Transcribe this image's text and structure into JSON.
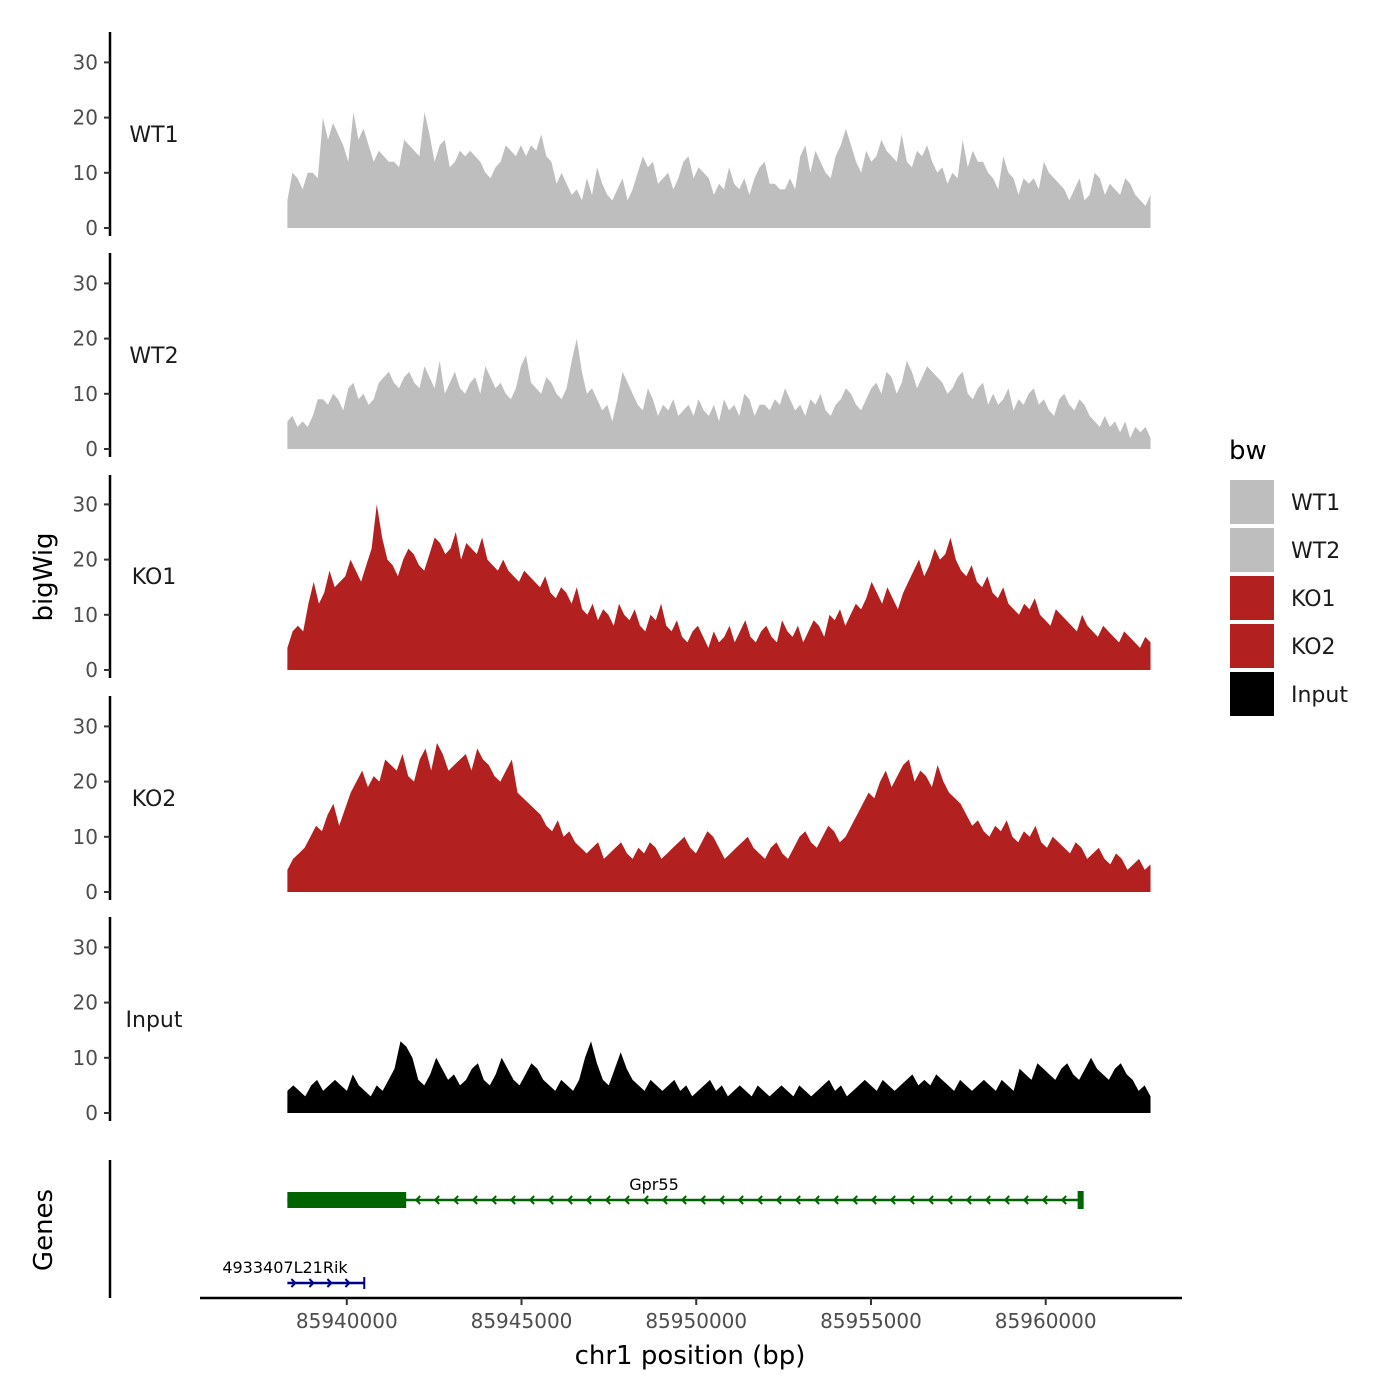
{
  "chart_data": {
    "type": "area",
    "ylabel": "bigWig",
    "xlabel": "chr1 position (bp)",
    "genes_label": "Genes",
    "x_range": [
      85938300,
      85963000
    ],
    "xlim": [
      85935800,
      85963900
    ],
    "x_ticks": [
      85940000,
      85945000,
      85950000,
      85955000,
      85960000
    ],
    "x_tick_labels": [
      "85940000",
      "85945000",
      "85950000",
      "85955000",
      "85960000"
    ],
    "y_ticks": [
      0,
      10,
      20,
      30
    ],
    "y_tick_labels": [
      "0",
      "10",
      "20",
      "30"
    ],
    "ylim": [
      0,
      36
    ],
    "tracks": [
      {
        "name": "WT1",
        "color": "#bebebe",
        "values": [
          5,
          10,
          9,
          7,
          10,
          10,
          9,
          20,
          16,
          19,
          17,
          15,
          12,
          21,
          16,
          18,
          15,
          12,
          14,
          13,
          12,
          12,
          11,
          16,
          15,
          14,
          13,
          21,
          17,
          12,
          15,
          16,
          11,
          12,
          14,
          13,
          14,
          13,
          12,
          10,
          9,
          11,
          12,
          15,
          14,
          13,
          15,
          13,
          15,
          14,
          17,
          13,
          12,
          8,
          10,
          8,
          6,
          7,
          5,
          9,
          6,
          11,
          8,
          6,
          5,
          7,
          9,
          5,
          7,
          10,
          13,
          11,
          12,
          8,
          9,
          10,
          7,
          9,
          12,
          13,
          9,
          11,
          10,
          9,
          6,
          8,
          7,
          11,
          8,
          7,
          9,
          6,
          9,
          11,
          12,
          8,
          8,
          7,
          7,
          9,
          7,
          13,
          15,
          10,
          14,
          12,
          10,
          9,
          13,
          15,
          18,
          15,
          12,
          10,
          14,
          12,
          13,
          16,
          14,
          13,
          12,
          17,
          12,
          11,
          14,
          13,
          15,
          12,
          10,
          11,
          8,
          10,
          9,
          16,
          11,
          14,
          12,
          12,
          10,
          9,
          7,
          13,
          10,
          9,
          6,
          9,
          8,
          9,
          7,
          12,
          10,
          9,
          8,
          7,
          5,
          7,
          9,
          5,
          6,
          10,
          9,
          6,
          8,
          7,
          6,
          9,
          8,
          6,
          5,
          4,
          6
        ]
      },
      {
        "name": "WT2",
        "color": "#bebebe",
        "values": [
          5,
          6,
          4,
          5,
          4,
          6,
          9,
          9,
          8,
          10,
          9,
          7,
          11,
          12,
          9,
          10,
          8,
          9,
          12,
          13,
          14,
          12,
          11,
          13,
          14,
          12,
          11,
          15,
          13,
          11,
          16,
          10,
          12,
          14,
          11,
          10,
          12,
          13,
          10,
          15,
          13,
          11,
          12,
          10,
          9,
          11,
          15,
          17,
          12,
          11,
          10,
          13,
          12,
          10,
          9,
          11,
          16,
          20,
          14,
          10,
          11,
          9,
          7,
          8,
          5,
          9,
          14,
          12,
          10,
          8,
          7,
          11,
          9,
          6,
          8,
          7,
          9,
          6,
          7,
          8,
          6,
          9,
          7,
          6,
          8,
          5,
          9,
          7,
          8,
          6,
          10,
          9,
          6,
          8,
          8,
          7,
          9,
          8,
          11,
          9,
          7,
          8,
          6,
          9,
          8,
          10,
          7,
          6,
          8,
          9,
          11,
          10,
          8,
          7,
          9,
          11,
          12,
          10,
          14,
          13,
          10,
          12,
          16,
          14,
          11,
          13,
          15,
          14,
          13,
          12,
          10,
          11,
          13,
          14,
          10,
          9,
          11,
          12,
          8,
          10,
          8,
          9,
          11,
          7,
          9,
          8,
          10,
          11,
          8,
          9,
          7,
          6,
          9,
          10,
          8,
          7,
          9,
          8,
          6,
          5,
          4,
          6,
          4,
          5,
          3,
          5,
          2,
          4,
          3,
          4,
          2
        ]
      },
      {
        "name": "KO1",
        "color": "#b22020",
        "values": [
          4,
          7,
          8,
          7,
          12,
          16,
          12,
          14,
          18,
          15,
          16,
          17,
          20,
          18,
          16,
          19,
          22,
          30,
          24,
          20,
          19,
          17,
          20,
          22,
          21,
          19,
          18,
          21,
          24,
          23,
          21,
          22,
          25,
          20,
          23,
          22,
          21,
          24,
          20,
          19,
          18,
          20,
          18,
          17,
          16,
          18,
          17,
          16,
          15,
          17,
          14,
          13,
          15,
          14,
          12,
          15,
          11,
          10,
          12,
          9,
          11,
          10,
          8,
          12,
          10,
          9,
          11,
          8,
          7,
          10,
          9,
          12,
          8,
          7,
          9,
          6,
          5,
          7,
          8,
          6,
          4,
          7,
          5,
          6,
          8,
          5,
          7,
          9,
          6,
          5,
          7,
          8,
          6,
          5,
          9,
          7,
          6,
          8,
          5,
          7,
          9,
          8,
          6,
          10,
          9,
          11,
          8,
          10,
          12,
          11,
          13,
          16,
          14,
          12,
          15,
          13,
          11,
          14,
          16,
          18,
          20,
          17,
          19,
          22,
          20,
          21,
          24,
          20,
          18,
          17,
          19,
          16,
          15,
          17,
          14,
          13,
          15,
          12,
          11,
          10,
          12,
          11,
          13,
          10,
          9,
          8,
          11,
          10,
          9,
          8,
          7,
          10,
          8,
          7,
          6,
          8,
          7,
          6,
          5,
          7,
          6,
          5,
          4,
          6,
          5
        ]
      },
      {
        "name": "KO2",
        "color": "#b22020",
        "values": [
          4,
          6,
          7,
          8,
          10,
          12,
          11,
          14,
          16,
          12,
          15,
          18,
          20,
          22,
          19,
          21,
          20,
          24,
          23,
          22,
          25,
          21,
          20,
          24,
          26,
          22,
          27,
          25,
          22,
          23,
          24,
          25,
          22,
          26,
          24,
          23,
          21,
          20,
          22,
          24,
          18,
          17,
          16,
          15,
          14,
          12,
          11,
          13,
          10,
          11,
          9,
          8,
          7,
          8,
          9,
          6,
          7,
          8,
          9,
          7,
          6,
          8,
          7,
          9,
          8,
          6,
          7,
          8,
          9,
          10,
          8,
          7,
          9,
          11,
          10,
          8,
          6,
          7,
          8,
          9,
          10,
          8,
          7,
          6,
          8,
          9,
          7,
          6,
          8,
          10,
          11,
          9,
          8,
          10,
          12,
          11,
          9,
          10,
          12,
          14,
          16,
          18,
          17,
          20,
          22,
          19,
          21,
          23,
          24,
          20,
          22,
          21,
          19,
          23,
          20,
          18,
          17,
          16,
          14,
          12,
          13,
          11,
          10,
          12,
          11,
          13,
          10,
          9,
          11,
          10,
          12,
          9,
          8,
          10,
          9,
          8,
          7,
          9,
          8,
          6,
          7,
          8,
          6,
          5,
          7,
          6,
          4,
          5,
          6,
          4,
          5
        ]
      },
      {
        "name": "Input",
        "color": "#000000",
        "values": [
          4,
          5,
          4,
          3,
          5,
          6,
          4,
          5,
          6,
          5,
          4,
          7,
          5,
          4,
          3,
          5,
          4,
          6,
          8,
          13,
          12,
          10,
          6,
          5,
          7,
          10,
          8,
          6,
          7,
          5,
          6,
          8,
          9,
          6,
          5,
          7,
          10,
          8,
          6,
          5,
          7,
          9,
          8,
          6,
          5,
          4,
          6,
          5,
          4,
          6,
          10,
          13,
          9,
          6,
          5,
          8,
          11,
          8,
          6,
          5,
          4,
          6,
          5,
          4,
          5,
          6,
          4,
          5,
          3,
          4,
          5,
          6,
          4,
          5,
          3,
          4,
          5,
          4,
          3,
          5,
          4,
          3,
          4,
          5,
          4,
          3,
          5,
          4,
          3,
          4,
          5,
          6,
          4,
          5,
          3,
          4,
          5,
          6,
          5,
          4,
          6,
          5,
          4,
          5,
          6,
          7,
          5,
          6,
          5,
          7,
          6,
          5,
          4,
          6,
          5,
          4,
          5,
          6,
          5,
          4,
          6,
          5,
          4,
          8,
          7,
          6,
          9,
          8,
          7,
          6,
          8,
          9,
          7,
          6,
          8,
          10,
          8,
          7,
          6,
          8,
          9,
          7,
          6,
          4,
          5,
          3
        ]
      }
    ],
    "legend": {
      "title": "bw",
      "entries": [
        {
          "label": "WT1",
          "color": "#bebebe"
        },
        {
          "label": "WT2",
          "color": "#bebebe"
        },
        {
          "label": "KO1",
          "color": "#b22020"
        },
        {
          "label": "KO2",
          "color": "#b22020"
        },
        {
          "label": "Input",
          "color": "#000000"
        }
      ]
    },
    "genes": [
      {
        "name": "Gpr55",
        "strand": "-",
        "start": 85938300,
        "end": 85961000,
        "thick_start": 85938300,
        "thick_end": 85941700,
        "color": "#006400"
      },
      {
        "name": "4933407L21Rik",
        "strand": "+",
        "start": 85938300,
        "end": 85940500,
        "color": "#00008b"
      }
    ]
  }
}
